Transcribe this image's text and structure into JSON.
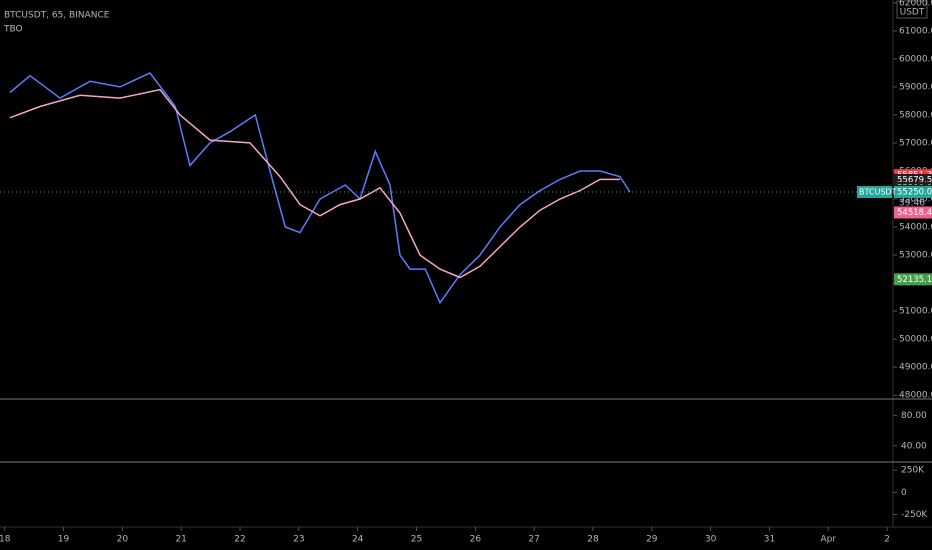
{
  "header": {
    "symbol": "BTCUSDT, 65, BINANCE",
    "indicator": "TBO",
    "currency": "USDT"
  },
  "chart_data": {
    "type": "line",
    "xlim": [
      17.92,
      33.1
    ],
    "ylim": [
      47900,
      62100
    ],
    "xticks": [
      18,
      19,
      20,
      21,
      22,
      23,
      24,
      25,
      26,
      27,
      28,
      29,
      30,
      31,
      {
        "value": 32,
        "label": "Apr"
      },
      {
        "value": 33,
        "label": "2"
      }
    ],
    "yticks": [
      {
        "value": 48000,
        "label": "48000.00"
      },
      {
        "value": 49000,
        "label": "49000.00"
      },
      {
        "value": 50000,
        "label": "50000.00"
      },
      {
        "value": 51000,
        "label": "51000.00"
      },
      {
        "value": 52000,
        "label": "52000.00"
      },
      {
        "value": 53000,
        "label": "53000.00"
      },
      {
        "value": 54000,
        "label": "54000.00"
      },
      {
        "value": 55000,
        "label": "55000.00"
      },
      {
        "value": 56000,
        "label": "56000.00"
      },
      {
        "value": 57000,
        "label": "57000.00"
      },
      {
        "value": 58000,
        "label": "58000.00"
      },
      {
        "value": 59000,
        "label": "59000.00"
      },
      {
        "value": 60000,
        "label": "60000.00"
      },
      {
        "value": 61000,
        "label": "61000.00"
      },
      {
        "value": 62000,
        "label": "62000.00"
      }
    ],
    "series": [
      {
        "color": "#5b7cff",
        "x": [
          18.09,
          18.43,
          18.94,
          19.45,
          19.96,
          20.47,
          20.9,
          21.15,
          21.49,
          21.83,
          22.26,
          22.51,
          22.77,
          23.02,
          23.36,
          23.79,
          24.04,
          24.3,
          24.55,
          24.72,
          24.89,
          25.15,
          25.4,
          25.74,
          26.08,
          26.42,
          26.76,
          27.1,
          27.44,
          27.78,
          28.12,
          28.46,
          28.63
        ],
        "values": [
          58800,
          59400,
          58600,
          59200,
          59000,
          59500,
          58300,
          56200,
          57000,
          57400,
          58000,
          56000,
          54000,
          53800,
          55000,
          55500,
          55000,
          56700,
          55500,
          53000,
          52500,
          52500,
          51300,
          52300,
          53000,
          54000,
          54800,
          55300,
          55700,
          56000,
          56000,
          55800,
          55250
        ]
      },
      {
        "color": "#f4a7c4",
        "x": [
          18.09,
          18.6,
          19.28,
          19.96,
          20.64,
          20.98,
          21.49,
          22.17,
          22.68,
          23.02,
          23.36,
          23.7,
          24.04,
          24.38,
          24.72,
          25.06,
          25.4,
          25.74,
          26.08,
          26.42,
          26.76,
          27.1,
          27.44,
          27.78,
          28.12,
          28.46
        ],
        "values": [
          57900,
          58300,
          58700,
          58600,
          58900,
          58000,
          57100,
          57000,
          55800,
          54800,
          54400,
          54800,
          55000,
          55400,
          54500,
          53000,
          52500,
          52200,
          52600,
          53300,
          54000,
          54600,
          55000,
          55300,
          55700,
          55700
        ]
      }
    ],
    "price_tags": [
      {
        "value": 55851.35,
        "label": "55851.35",
        "color": "#f23645"
      },
      {
        "value": 55679.58,
        "label": "55679.58",
        "color": "#1e1e1e"
      },
      {
        "value": 55390.92,
        "label": "55390.92",
        "color": "#1e1e1e"
      },
      {
        "value": 55297.94,
        "label": "55297.94",
        "color": "#1e1e1e"
      },
      {
        "value": 55250,
        "label": "55250.00",
        "color": "#26a69a"
      },
      {
        "value": 54518.4,
        "label": "54518.40",
        "color": "#f06292"
      },
      {
        "value": 52135.14,
        "label": "52135.14",
        "color": "#43a047"
      }
    ],
    "symbol_tag": "BTCUSDT",
    "countdown": "39:46",
    "panes": [
      {
        "ylim": [
          20,
          100
        ],
        "yticks": [
          {
            "value": 80,
            "label": "80.00"
          },
          {
            "value": 40,
            "label": "40.00"
          }
        ]
      },
      {
        "ylim": [
          -380000,
          330000
        ],
        "yticks": [
          {
            "value": 250000,
            "label": "250K"
          },
          0,
          {
            "value": -250000,
            "label": "-250K"
          }
        ]
      }
    ]
  }
}
